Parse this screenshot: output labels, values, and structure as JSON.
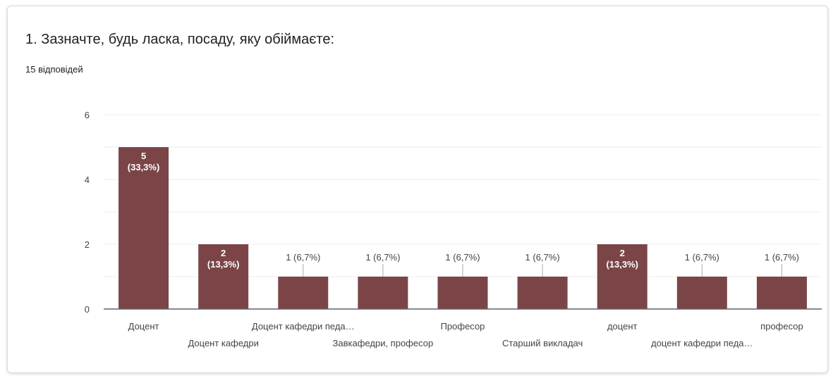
{
  "question": {
    "title": "1. Зазначте, будь ласка, посаду, яку обіймаєте:",
    "response_count": "15 відповідей"
  },
  "colors": {
    "bar": "#7b4547",
    "grid": "#ececec",
    "axis": "#5f6368",
    "label_inside": "#ffffff",
    "label_outside": "#444444"
  },
  "chart_data": {
    "type": "bar",
    "categories": [
      "Доцент",
      "Доцент кафедри",
      "Доцент кафедри педа…",
      "Завкафедри, професор",
      "Професор",
      "Старший викладач",
      "доцент",
      "доцент кафедри педа…",
      "професор"
    ],
    "values": [
      5,
      2,
      1,
      1,
      1,
      1,
      2,
      1,
      1
    ],
    "data_labels": [
      [
        "5",
        "(33,3%)"
      ],
      [
        "2",
        "(13,3%)"
      ],
      [
        "1 (6,7%)"
      ],
      [
        "1 (6,7%)"
      ],
      [
        "1 (6,7%)"
      ],
      [
        "1 (6,7%)"
      ],
      [
        "2",
        "(13,3%)"
      ],
      [
        "1 (6,7%)"
      ],
      [
        "1 (6,7%)"
      ]
    ],
    "ylim": [
      0,
      6
    ],
    "yticks": [
      "0",
      "2",
      "4",
      "6"
    ],
    "grid": true,
    "xlabel": "",
    "ylabel": ""
  }
}
